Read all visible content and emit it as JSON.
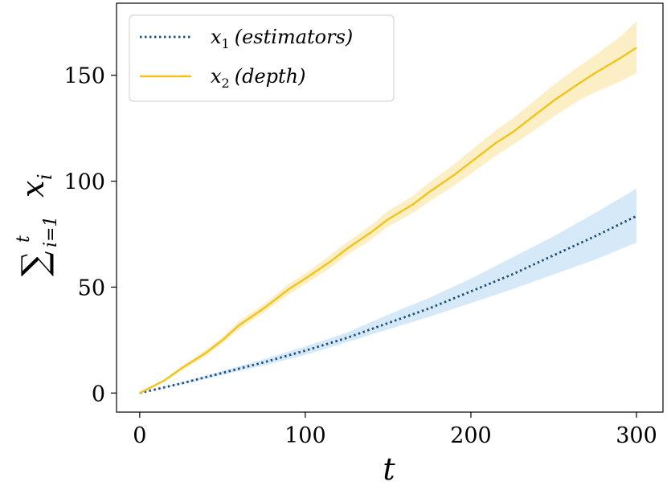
{
  "chart_data": {
    "type": "line",
    "title": "",
    "xlabel": "t",
    "ylabel": {
      "sum_symbol": "∑",
      "upper_limit": "t",
      "lower_limit": "i=1",
      "variable": "x",
      "subscript": "i"
    },
    "xlim": [
      -14,
      316
    ],
    "ylim": [
      -9,
      184
    ],
    "xticks": [
      0,
      100,
      200,
      300
    ],
    "xtick_labels": [
      "0",
      "100",
      "200",
      "300"
    ],
    "yticks": [
      0,
      50,
      100,
      150
    ],
    "ytick_labels": [
      "0",
      "50",
      "100",
      "150"
    ],
    "grid": false,
    "legend_position": "top-left",
    "series": [
      {
        "name": "x1 (estimators)",
        "legend_main": "x",
        "legend_sub": "1",
        "legend_rest": "(estimators)",
        "style": "dotted",
        "color": "#1f4e79",
        "band_color": "#d6e9f8",
        "x": [
          0,
          25,
          50,
          75,
          100,
          125,
          150,
          175,
          200,
          225,
          250,
          275,
          300
        ],
        "mean": [
          0,
          4.5,
          9.5,
          14.5,
          20,
          26,
          33,
          40,
          48,
          56,
          65,
          74,
          83.5
        ],
        "lower": [
          0,
          4,
          8.5,
          13,
          18,
          24,
          30,
          36,
          42.5,
          49,
          56,
          63,
          71
        ],
        "upper": [
          0,
          5,
          10.5,
          16,
          22,
          28.5,
          37,
          45,
          54,
          64,
          74,
          85,
          96.5
        ]
      },
      {
        "name": "x2 (depth)",
        "legend_main": "x",
        "legend_sub": "2",
        "legend_rest": "(depth)",
        "style": "solid",
        "color": "#f0c419",
        "band_color": "#fcefc6",
        "x": [
          0,
          15,
          25,
          40,
          50,
          60,
          75,
          90,
          100,
          115,
          125,
          140,
          150,
          165,
          175,
          190,
          200,
          215,
          225,
          240,
          250,
          265,
          275,
          290,
          300
        ],
        "mean": [
          0,
          6,
          11.5,
          19,
          25,
          32,
          40,
          49,
          54,
          62,
          68,
          76,
          82,
          89,
          95,
          103,
          109,
          118,
          123,
          132,
          138,
          146,
          151,
          158,
          163
        ],
        "lower": [
          0,
          5.5,
          10.5,
          17.5,
          23.5,
          30,
          38,
          46.5,
          51.5,
          59,
          65,
          72.5,
          78.5,
          85,
          90.5,
          98,
          103.5,
          112,
          117,
          125,
          130.5,
          138,
          142,
          147,
          151
        ],
        "upper": [
          0,
          6.5,
          12.5,
          20.5,
          26.5,
          34,
          42,
          51.5,
          56.5,
          65,
          71,
          79.5,
          86,
          93,
          99.5,
          108,
          114.5,
          124,
          129.5,
          139,
          145.5,
          154,
          159.5,
          168,
          175.5
        ]
      }
    ]
  }
}
